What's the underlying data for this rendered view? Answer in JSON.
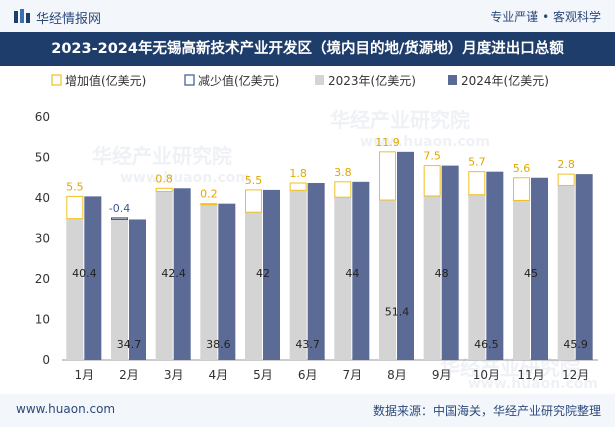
{
  "header": {
    "brand": "华经情报网",
    "slogan": "专业严谨 • 客观科学"
  },
  "title": "2023-2024年无锡高新技术产业开发区（境内目的地/货源地）月度进出口总额",
  "footer": {
    "website": "www.huaon.com",
    "source": "数据来源：中国海关，华经产业研究院整理"
  },
  "watermarks": [
    "华经产业研究院",
    "www.huaon.com"
  ],
  "colors": {
    "s2023": "#d4d4d4",
    "s2024": "#5b6b96",
    "increase": "#f0c020",
    "decrease": "#3a5a8c",
    "titlebar": "#1f3d6b"
  },
  "chart_data": {
    "type": "bar",
    "categories": [
      "1月",
      "2月",
      "3月",
      "4月",
      "5月",
      "6月",
      "7月",
      "8月",
      "9月",
      "10月",
      "11月",
      "12月"
    ],
    "series": [
      {
        "name": "2023年(亿美元)",
        "values": [
          34.9,
          35.1,
          41.6,
          38.4,
          36.5,
          41.9,
          40.2,
          39.5,
          40.5,
          40.8,
          39.4,
          43.1
        ]
      },
      {
        "name": "2024年(亿美元)",
        "values": [
          40.4,
          34.7,
          42.4,
          38.6,
          42,
          43.7,
          44,
          51.4,
          48,
          46.5,
          45,
          45.9
        ]
      }
    ],
    "change": {
      "labels": [
        "5.5",
        "-0.4",
        "0.8",
        "0.2",
        "5.5",
        "1.8",
        "3.8",
        "11.9",
        "7.5",
        "5.7",
        "5.6",
        "2.8"
      ],
      "values": [
        5.5,
        -0.4,
        0.8,
        0.2,
        5.5,
        1.8,
        3.8,
        11.9,
        7.5,
        5.7,
        5.6,
        2.8
      ]
    },
    "legend": [
      "增加值(亿美元)",
      "减少值(亿美元)",
      "2023年(亿美元)",
      "2024年(亿美元)"
    ],
    "ylim": [
      0,
      60
    ],
    "yticks": [
      0,
      10,
      20,
      30,
      40,
      50,
      60
    ],
    "grid": false,
    "legend_position": "top-left"
  }
}
